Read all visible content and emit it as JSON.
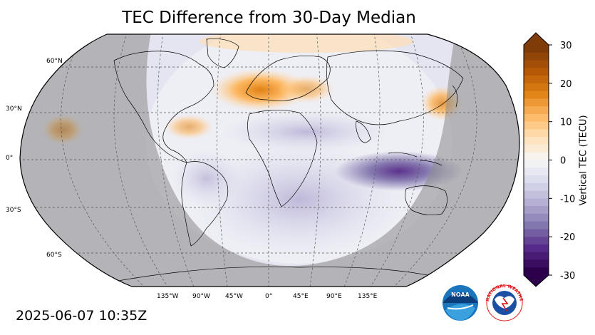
{
  "title": "TEC Difference from 30-Day Median",
  "timestamp": "2025-06-07 10:35Z",
  "colorbar": {
    "label": "Vertical TEC (TECU)",
    "ticks": [
      30,
      20,
      10,
      0,
      -10,
      -20,
      -30
    ],
    "tick_labels": [
      "30",
      "20",
      "10",
      "0",
      "-10",
      "-20",
      "-30"
    ],
    "range": [
      -30,
      30
    ],
    "colors_top_to_bottom": [
      "#7f3b08",
      "#b35806",
      "#e08214",
      "#fdb863",
      "#fee0b6",
      "#f7f7f7",
      "#d8daeb",
      "#b2abd2",
      "#8073ac",
      "#542788",
      "#2d004b"
    ]
  },
  "map": {
    "projection": "Robinson",
    "lat_labels": [
      "60°N",
      "30°N",
      "0°",
      "30°S",
      "60°S"
    ],
    "lon_labels": [
      "135°W",
      "90°W",
      "45°W",
      "0°",
      "45°E",
      "90°E",
      "135°E"
    ],
    "night_shading": "gray",
    "features": [
      {
        "name": "positive anomaly",
        "region": "Europe / North Atlantic",
        "approx_value_tecu": 12
      },
      {
        "name": "positive anomaly",
        "region": "Central Pacific near Hawaii",
        "approx_value_tecu": 15
      },
      {
        "name": "positive anomaly",
        "region": "Japan",
        "approx_value_tecu": 8
      },
      {
        "name": "negative anomaly",
        "region": "Indian Ocean / Indonesia",
        "approx_value_tecu": -22
      }
    ]
  },
  "logos": [
    "NOAA",
    "NATIONAL WEATHER SERVICE"
  ]
}
